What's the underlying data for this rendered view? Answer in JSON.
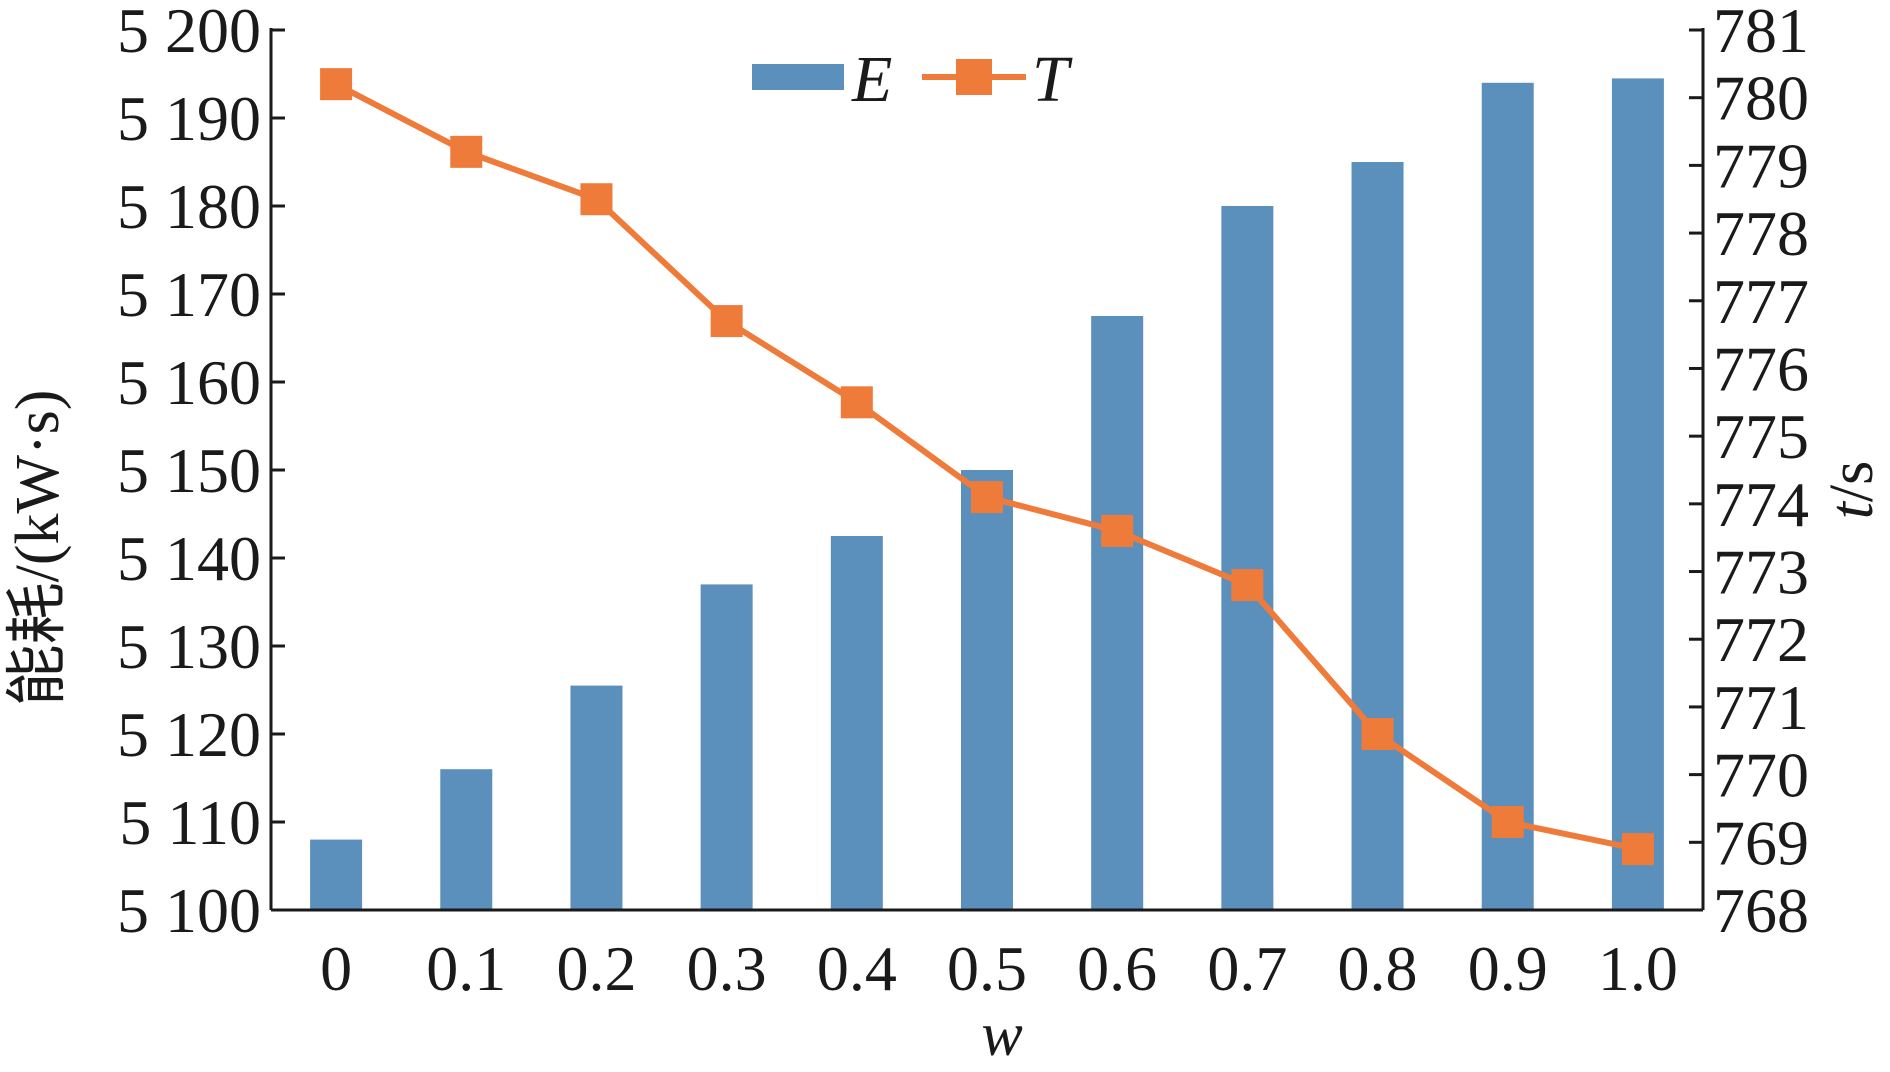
{
  "chart_data": {
    "type": "bar",
    "x_categories": [
      "0",
      "0.1",
      "0.2",
      "0.3",
      "0.4",
      "0.5",
      "0.6",
      "0.7",
      "0.8",
      "0.9",
      "1.0"
    ],
    "xlabel": "w",
    "ylabel_left": "能耗/(kW·s)",
    "ylabel_right_italic": "t",
    "ylabel_right_rest": "/s",
    "ylim_left": [
      5100,
      5200
    ],
    "yticks_left": [
      "5 100",
      "5 110",
      "5 120",
      "5 130",
      "5 140",
      "5 150",
      "5 160",
      "5 170",
      "5 180",
      "5 190",
      "5 200"
    ],
    "ylim_right": [
      768,
      781
    ],
    "yticks_right": [
      "768",
      "769",
      "770",
      "771",
      "772",
      "773",
      "774",
      "775",
      "776",
      "777",
      "778",
      "779",
      "780",
      "781"
    ],
    "legend_position": "top",
    "series": [
      {
        "name": "E",
        "type": "bar",
        "axis": "left",
        "color": "#5b8fbc",
        "values": [
          5108,
          5116,
          5125.5,
          5137,
          5142.5,
          5150,
          5167.5,
          5180,
          5185,
          5194,
          5194.5
        ]
      },
      {
        "name": "T",
        "type": "line",
        "axis": "right",
        "marker": "square",
        "color": "#ef7b3a",
        "values": [
          780.2,
          779.2,
          778.5,
          776.7,
          775.5,
          774.1,
          773.6,
          772.8,
          770.6,
          769.3,
          768.9
        ]
      }
    ]
  }
}
